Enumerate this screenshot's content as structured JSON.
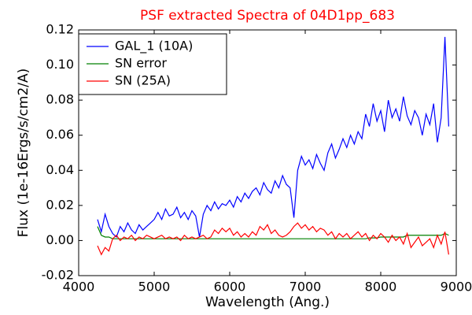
{
  "chart_data": {
    "type": "line",
    "title": "PSF extracted Spectra of 04D1pp_683",
    "xlabel": "Wavelength (Ang.)",
    "ylabel": "Flux (1e-16Ergs/s/cm2/A)",
    "xlim": [
      4000,
      9000
    ],
    "xticks": [
      4000,
      5000,
      6000,
      7000,
      8000,
      9000
    ],
    "ylim": [
      -0.02,
      0.12
    ],
    "yticks": [
      -0.02,
      {
        "value": 0,
        "label": "0.00"
      },
      0.02,
      0.04,
      0.06,
      0.08,
      {
        "value": 0.1,
        "label": "0.10"
      },
      0.12
    ],
    "legend": "upper left",
    "x": [
      4250,
      4300,
      4350,
      4400,
      4450,
      4500,
      4550,
      4600,
      4650,
      4700,
      4750,
      4800,
      4850,
      4900,
      4950,
      5000,
      5050,
      5100,
      5150,
      5200,
      5250,
      5300,
      5350,
      5400,
      5450,
      5500,
      5550,
      5600,
      5650,
      5700,
      5750,
      5800,
      5850,
      5900,
      5950,
      6000,
      6050,
      6100,
      6150,
      6200,
      6250,
      6300,
      6350,
      6400,
      6450,
      6500,
      6550,
      6600,
      6650,
      6700,
      6750,
      6800,
      6850,
      6900,
      6950,
      7000,
      7050,
      7100,
      7150,
      7200,
      7250,
      7300,
      7350,
      7400,
      7450,
      7500,
      7550,
      7600,
      7650,
      7700,
      7750,
      7800,
      7850,
      7900,
      7950,
      8000,
      8050,
      8100,
      8150,
      8200,
      8250,
      8300,
      8350,
      8400,
      8450,
      8500,
      8550,
      8600,
      8650,
      8700,
      8750,
      8800,
      8850,
      8900
    ],
    "series": [
      {
        "name": "GAL_1 (10A)",
        "color": "#0000ff",
        "values": [
          0.012,
          0.005,
          0.015,
          0.008,
          0.004,
          0.002,
          0.008,
          0.005,
          0.01,
          0.006,
          0.004,
          0.009,
          0.006,
          0.008,
          0.01,
          0.012,
          0.016,
          0.012,
          0.018,
          0.014,
          0.015,
          0.019,
          0.013,
          0.016,
          0.012,
          0.017,
          0.014,
          0.002,
          0.015,
          0.02,
          0.017,
          0.022,
          0.018,
          0.021,
          0.02,
          0.023,
          0.019,
          0.025,
          0.022,
          0.027,
          0.024,
          0.028,
          0.03,
          0.026,
          0.033,
          0.029,
          0.027,
          0.034,
          0.03,
          0.037,
          0.032,
          0.03,
          0.013,
          0.04,
          0.048,
          0.043,
          0.046,
          0.041,
          0.049,
          0.044,
          0.04,
          0.05,
          0.055,
          0.047,
          0.052,
          0.058,
          0.053,
          0.06,
          0.055,
          0.062,
          0.058,
          0.072,
          0.065,
          0.078,
          0.068,
          0.074,
          0.062,
          0.08,
          0.07,
          0.075,
          0.068,
          0.082,
          0.071,
          0.066,
          0.074,
          0.07,
          0.06,
          0.072,
          0.066,
          0.078,
          0.056,
          0.07,
          0.116,
          0.065
        ]
      },
      {
        "name": "SN error",
        "color": "#008000",
        "values": [
          0.008,
          0.003,
          0.002,
          0.002,
          0.001,
          0.001,
          0.001,
          0.001,
          0.001,
          0.001,
          0.001,
          0.001,
          0.001,
          0.001,
          0.001,
          0.001,
          0.001,
          0.001,
          0.001,
          0.001,
          0.001,
          0.001,
          0.001,
          0.001,
          0.001,
          0.001,
          0.001,
          0.001,
          0.001,
          0.001,
          0.001,
          0.001,
          0.001,
          0.001,
          0.001,
          0.001,
          0.001,
          0.001,
          0.001,
          0.001,
          0.001,
          0.001,
          0.001,
          0.001,
          0.001,
          0.001,
          0.001,
          0.001,
          0.001,
          0.001,
          0.001,
          0.001,
          0.001,
          0.001,
          0.001,
          0.001,
          0.001,
          0.001,
          0.001,
          0.001,
          0.001,
          0.001,
          0.001,
          0.001,
          0.001,
          0.001,
          0.001,
          0.001,
          0.001,
          0.001,
          0.001,
          0.001,
          0.0015,
          0.0015,
          0.0015,
          0.002,
          0.002,
          0.002,
          0.002,
          0.002,
          0.002,
          0.002,
          0.003,
          0.003,
          0.003,
          0.003,
          0.003,
          0.003,
          0.003,
          0.003,
          0.003,
          0.003,
          0.004,
          0.003
        ]
      },
      {
        "name": "SN (25A)",
        "color": "#ff0000",
        "values": [
          -0.003,
          -0.008,
          -0.004,
          -0.006,
          0.001,
          0.003,
          0.0,
          0.002,
          0.001,
          0.003,
          0.0,
          0.002,
          0.001,
          0.003,
          0.002,
          0.001,
          0.002,
          0.003,
          0.001,
          0.002,
          0.001,
          0.002,
          0.0,
          0.003,
          0.001,
          0.002,
          0.001,
          0.002,
          0.003,
          0.001,
          0.002,
          0.006,
          0.004,
          0.007,
          0.005,
          0.007,
          0.003,
          0.005,
          0.002,
          0.004,
          0.002,
          0.005,
          0.003,
          0.008,
          0.006,
          0.009,
          0.004,
          0.006,
          0.003,
          0.002,
          0.003,
          0.005,
          0.008,
          0.01,
          0.007,
          0.009,
          0.006,
          0.008,
          0.005,
          0.007,
          0.006,
          0.003,
          0.005,
          0.001,
          0.004,
          0.002,
          0.004,
          0.001,
          0.003,
          0.005,
          0.002,
          0.004,
          0.0,
          0.003,
          0.001,
          0.004,
          0.002,
          -0.001,
          0.003,
          0.0,
          0.002,
          -0.002,
          0.004,
          -0.004,
          -0.001,
          0.002,
          -0.003,
          -0.001,
          0.001,
          -0.004,
          0.003,
          -0.002,
          0.005,
          -0.008
        ]
      }
    ]
  }
}
